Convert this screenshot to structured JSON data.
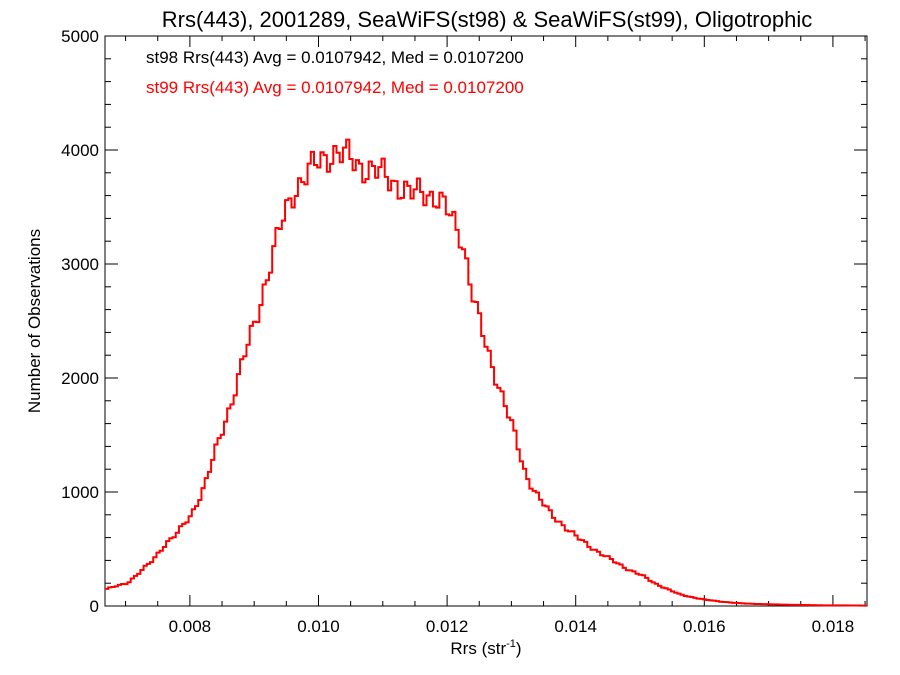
{
  "chart_data": {
    "type": "line",
    "step": true,
    "title": "Rrs(443), 2001289, SeaWiFS(st98) & SeaWiFS(st99), Oligotrophic",
    "xlabel": "Rrs (str",
    "xlabel_sup": "-1",
    "xlabel_tail": ")",
    "ylabel": "Number of Observations",
    "xlim": [
      0.00668,
      0.01853
    ],
    "ylim": [
      0,
      5000
    ],
    "xticks": [
      {
        "value": 0.008,
        "label": "0.008"
      },
      {
        "value": 0.01,
        "label": "0.010"
      },
      {
        "value": 0.012,
        "label": "0.012"
      },
      {
        "value": 0.014,
        "label": "0.014"
      },
      {
        "value": 0.016,
        "label": "0.016"
      },
      {
        "value": 0.018,
        "label": "0.018"
      }
    ],
    "yticks": [
      {
        "value": 0,
        "label": "0"
      },
      {
        "value": 1000,
        "label": "1000"
      },
      {
        "value": 2000,
        "label": "2000"
      },
      {
        "value": 3000,
        "label": "3000"
      },
      {
        "value": 4000,
        "label": "4000"
      },
      {
        "value": 5000,
        "label": "5000"
      }
    ],
    "annotations": [
      {
        "text": "st98 Rrs(443) Avg = 0.0107942, Med = 0.0107200",
        "color": "#000000"
      },
      {
        "text": "st99 Rrs(443) Avg = 0.0107942, Med = 0.0107200",
        "color": "#ff0000"
      }
    ],
    "series": [
      {
        "color": "#ff0000",
        "x": [
          0.00668,
          0.007,
          0.0072,
          0.0074,
          0.0076,
          0.0078,
          0.008,
          0.0082,
          0.0084,
          0.0086,
          0.0088,
          0.009,
          0.0092,
          0.0094,
          0.0096,
          0.0098,
          0.01,
          0.0102,
          0.0104,
          0.0106,
          0.0108,
          0.011,
          0.0112,
          0.0114,
          0.0116,
          0.0118,
          0.012,
          0.0122,
          0.0124,
          0.0126,
          0.0128,
          0.013,
          0.0132,
          0.0134,
          0.0136,
          0.0138,
          0.014,
          0.0142,
          0.0144,
          0.0146,
          0.0148,
          0.015,
          0.0152,
          0.0154,
          0.0156,
          0.0158,
          0.016,
          0.0162,
          0.0164,
          0.0166,
          0.0168,
          0.017,
          0.0172,
          0.0174,
          0.0176,
          0.0178,
          0.018,
          0.0182,
          0.0184,
          0.01853
        ],
        "values": [
          150,
          200,
          300,
          400,
          550,
          650,
          800,
          1050,
          1400,
          1750,
          2150,
          2500,
          2950,
          3350,
          3650,
          3800,
          3900,
          3980,
          3950,
          3870,
          3820,
          3780,
          3700,
          3600,
          3650,
          3580,
          3450,
          3250,
          2650,
          2250,
          1900,
          1550,
          1150,
          950,
          800,
          700,
          600,
          520,
          450,
          380,
          320,
          270,
          200,
          150,
          100,
          75,
          55,
          40,
          30,
          22,
          18,
          15,
          12,
          10,
          8,
          6,
          5,
          5,
          4,
          3
        ]
      }
    ]
  }
}
